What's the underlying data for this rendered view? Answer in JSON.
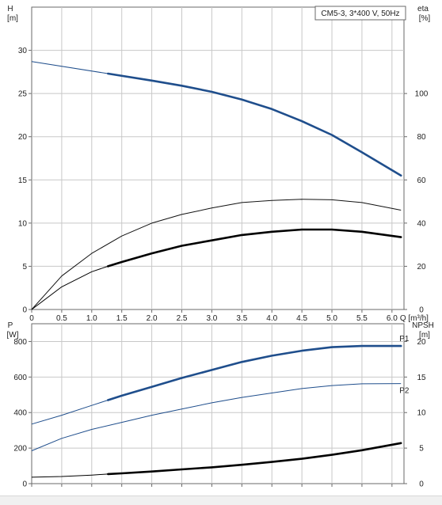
{
  "chart_data": [
    {
      "type": "line",
      "title": "CM5-3, 3*400 V, 50Hz",
      "xlabel": "Q [m³/h]",
      "x_ticks": [
        "0",
        "0.5",
        "1.0",
        "1.5",
        "2.0",
        "2.5",
        "3.0",
        "3.5",
        "4.0",
        "4.5",
        "5.0",
        "5.5",
        "6.0"
      ],
      "xlim": [
        0,
        6.2
      ],
      "ylabel_left": "H",
      "ylabel_left_unit": "[m]",
      "ylim_left": [
        0,
        35
      ],
      "y_ticks_left": [
        "0",
        "5",
        "10",
        "15",
        "20",
        "25",
        "30"
      ],
      "ylabel_right": "eta",
      "ylabel_right_unit": "[%]",
      "ylim_right": [
        0,
        140
      ],
      "y_ticks_right": [
        "0",
        "20",
        "40",
        "60",
        "80",
        "100"
      ],
      "grid": true,
      "series": [
        {
          "axis": "left",
          "color": "#1f4e8c",
          "x": [
            0,
            1.27,
            2.0,
            2.5,
            3.0,
            3.5,
            4.0,
            4.5,
            5.0,
            5.5,
            6.15
          ],
          "y": [
            28.7,
            27.3,
            26.5,
            25.9,
            25.2,
            24.3,
            23.2,
            21.8,
            20.2,
            18.2,
            15.5
          ],
          "bold_from_x": 1.27
        },
        {
          "axis": "right",
          "color": "#111111",
          "x": [
            0,
            0.5,
            1.0,
            1.5,
            2.0,
            2.5,
            3.0,
            3.5,
            4.0,
            4.5,
            5.0,
            5.5,
            6.15
          ],
          "y": [
            0,
            15.5,
            26,
            34,
            40,
            44,
            47,
            49.5,
            50.5,
            51,
            50.8,
            49.5,
            46
          ]
        },
        {
          "axis": "right",
          "color": "#000000",
          "x": [
            0,
            0.5,
            1.0,
            1.27,
            1.5,
            2.0,
            2.5,
            3.0,
            3.5,
            4.0,
            4.5,
            5.0,
            5.5,
            6.15
          ],
          "y": [
            0,
            10.5,
            17.5,
            20,
            22,
            26,
            29.5,
            32,
            34.5,
            36,
            37,
            37,
            36,
            33.5
          ],
          "bold_from_x": 1.27
        }
      ]
    },
    {
      "type": "line",
      "ylabel_left": "P",
      "ylabel_left_unit": "[W]",
      "ylim_left": [
        0,
        900
      ],
      "y_ticks_left": [
        "0",
        "200",
        "400",
        "600",
        "800"
      ],
      "ylabel_right": "NPSH",
      "ylabel_right_unit": "[m]",
      "ylim_right": [
        0,
        22.5
      ],
      "y_ticks_right": [
        "0",
        "5",
        "10",
        "15",
        "20"
      ],
      "xlim": [
        0,
        6.2
      ],
      "grid": true,
      "series": [
        {
          "name": "P1",
          "axis": "left",
          "color": "#1f4e8c",
          "x": [
            0,
            0.5,
            1.0,
            1.27,
            1.5,
            2.0,
            2.5,
            3.0,
            3.5,
            4.0,
            4.5,
            5.0,
            5.5,
            6.15
          ],
          "y": [
            335,
            385,
            440,
            470,
            495,
            545,
            595,
            640,
            685,
            720,
            748,
            768,
            775,
            775
          ],
          "bold_from_x": 1.27
        },
        {
          "name": "P2",
          "axis": "left",
          "color": "#1f4e8c",
          "x": [
            0,
            0.5,
            1.0,
            1.5,
            2.0,
            2.5,
            3.0,
            3.5,
            4.0,
            4.5,
            5.0,
            5.5,
            6.15
          ],
          "y": [
            185,
            255,
            305,
            345,
            385,
            420,
            455,
            485,
            510,
            535,
            552,
            562,
            563
          ]
        },
        {
          "axis": "right",
          "color": "#000000",
          "x": [
            0,
            0.5,
            1.0,
            1.27,
            1.5,
            2.0,
            2.5,
            3.0,
            3.5,
            4.0,
            4.5,
            5.0,
            5.5,
            6.15
          ],
          "y": [
            0.9,
            1.0,
            1.2,
            1.35,
            1.45,
            1.7,
            2.0,
            2.3,
            2.65,
            3.05,
            3.5,
            4.05,
            4.7,
            5.7
          ],
          "bold_from_x": 1.27
        }
      ]
    }
  ]
}
